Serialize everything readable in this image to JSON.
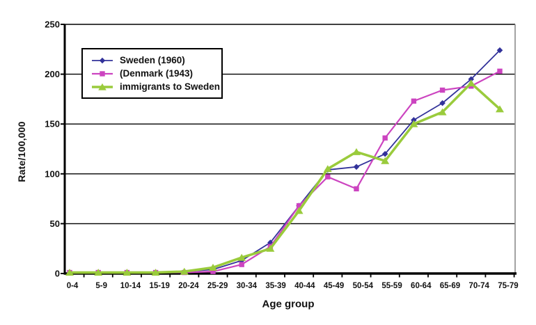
{
  "chart_data": {
    "type": "line",
    "title": "",
    "xlabel": "Age group",
    "ylabel": "Rate/100,000",
    "categories": [
      "0-4",
      "5-9",
      "10-14",
      "15-19",
      "20-24",
      "25-29",
      "30-34",
      "35-39",
      "40-44",
      "45-49",
      "50-54",
      "55-59",
      "60-64",
      "65-69",
      "70-74",
      "75-79"
    ],
    "yticks": [
      0,
      50,
      100,
      150,
      200,
      250
    ],
    "ylim": [
      0,
      250
    ],
    "grid": true,
    "legend_position": "upper-left-inside",
    "series": [
      {
        "name": "Sweden (1960)",
        "color": "#32329A",
        "marker": "diamond",
        "line_width": 1.8,
        "values": [
          1,
          1,
          1,
          1,
          2,
          4,
          13,
          31,
          68,
          104,
          107,
          120,
          154,
          171,
          195,
          224
        ]
      },
      {
        "name": "(Denmark (1943)",
        "color": "#CC44C0",
        "marker": "square",
        "line_width": 2.2,
        "values": [
          1,
          1,
          1,
          1,
          1,
          2,
          9,
          27,
          68,
          97,
          85,
          136,
          173,
          184,
          188,
          203
        ]
      },
      {
        "name": "immigrants to Sweden",
        "color": "#9ACB3C",
        "marker": "triangle",
        "line_width": 3.6,
        "values": [
          1,
          1,
          1,
          1,
          2,
          6,
          16,
          25,
          63,
          105,
          122,
          113,
          150,
          162,
          191,
          165
        ]
      }
    ],
    "colors": {
      "grid": "#000000",
      "axis": "#000000",
      "plot_border_right": "#8a8a8a",
      "background": "#ffffff",
      "text": "#111111"
    }
  }
}
